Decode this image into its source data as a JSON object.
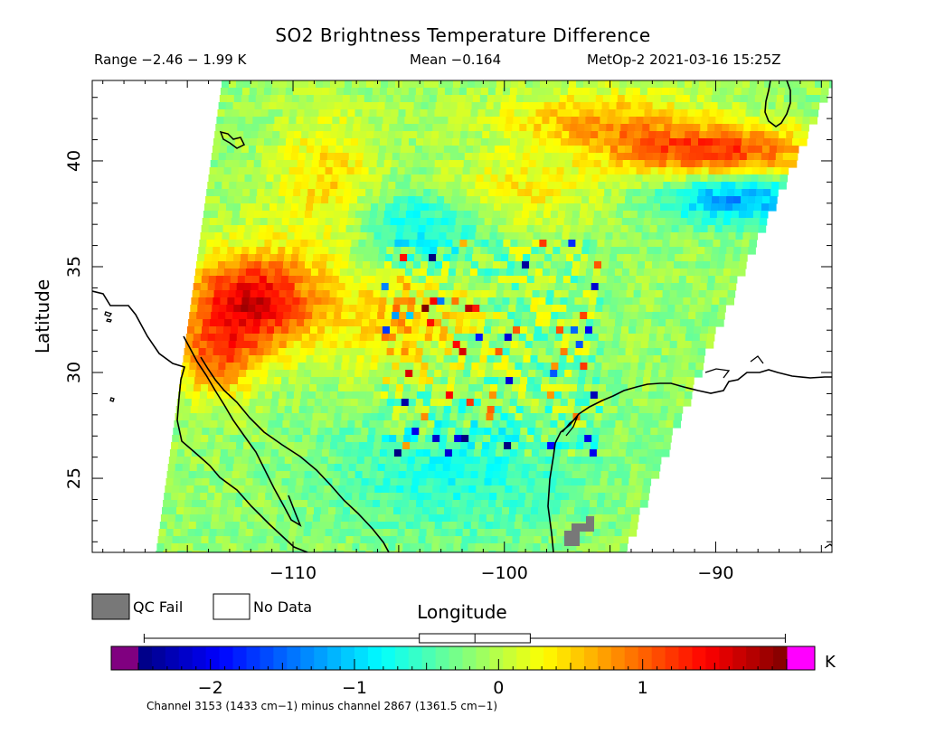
{
  "chart_data": {
    "type": "heatmap",
    "title": "SO2 Brightness Temperature Difference",
    "subtitle": {
      "range": "Range −2.46 − 1.99 K",
      "mean": "Mean −0.164",
      "stamp": "MetOp-2 2021-03-16 15:25Z"
    },
    "xlabel": "Longitude",
    "ylabel": "Latitude",
    "xlim": [
      -119.5,
      -84.5
    ],
    "ylim": [
      21.5,
      43.8
    ],
    "x_ticks": [
      -110,
      -100,
      -90
    ],
    "y_ticks": [
      25,
      30,
      35,
      40
    ],
    "x_tick_labels": [
      "−110",
      "−100",
      "−90"
    ],
    "y_tick_labels": [
      "25",
      "30",
      "35",
      "40"
    ],
    "value_range": [
      -2.46,
      1.99
    ],
    "mean": -0.164,
    "units": "K",
    "colorbar": {
      "min": -2.5,
      "max": 2.0,
      "ticks": [
        -2,
        -1,
        0,
        1
      ],
      "tick_labels": [
        "−2",
        "−1",
        "0",
        "1"
      ],
      "unit_label": "K",
      "under_color": "#800080",
      "over_color": "#ff00ff",
      "box_whisker": {
        "min": -2.46,
        "q1": -0.55,
        "median": -0.164,
        "q3": 0.22,
        "max": 1.99
      }
    },
    "legend": [
      {
        "label": "QC Fail",
        "color": "#787878"
      },
      {
        "label": "No Data",
        "color": "#ffffff"
      }
    ],
    "colors": {
      "qc_fail": "#787878",
      "no_data": "#ffffff"
    },
    "swath_regions": [
      {
        "feature": "warm anomaly",
        "lon": [
          -116,
          -109
        ],
        "lat": [
          31,
          36
        ],
        "value": 1.6
      },
      {
        "feature": "warm band",
        "lon": [
          -98,
          -86
        ],
        "lat": [
          39,
          42
        ],
        "value": 1.2
      },
      {
        "feature": "cool area",
        "lon": [
          -96,
          -88
        ],
        "lat": [
          36,
          39.5
        ],
        "value": -1.0
      },
      {
        "feature": "noisy low band",
        "lon": [
          -107,
          -93
        ],
        "lat": [
          27,
          35
        ],
        "value": -0.3
      },
      {
        "feature": "QC fail pixels",
        "lon": [
          -96.6,
          -95.6
        ],
        "lat": [
          21.8,
          22.8
        ],
        "value": null
      }
    ],
    "footnote": "Channel 3153 (1433 cm−1) minus channel 2867 (1361.5 cm−1)"
  }
}
